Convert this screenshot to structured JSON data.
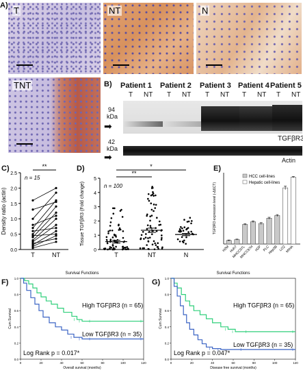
{
  "panels": {
    "A": "A)",
    "B": "B)",
    "C": "C)",
    "D": "D)",
    "E": "E)",
    "F": "F)",
    "G": "G)"
  },
  "histology": {
    "tiles": [
      "T",
      "NT",
      "N",
      "TNT"
    ]
  },
  "western_blot": {
    "patients": [
      "Patient 1",
      "Patient 2",
      "Patient 3",
      "Patient 4",
      "Patient 5"
    ],
    "lanes": [
      "T",
      "NT"
    ],
    "top_kda": "94",
    "bottom_kda": "42",
    "kda_unit": "kDa",
    "top_label": "TGFβR3",
    "bottom_label": "Actin"
  },
  "chart_data": [
    {
      "id": "C",
      "type": "scatter",
      "ylabel": "Density ratio (actin)",
      "categories": [
        "T",
        "NT"
      ],
      "yticks": [
        0.0,
        0.5,
        1.0,
        1.5,
        2.0,
        2.5
      ],
      "ylim": [
        0,
        2.5
      ],
      "n_label": "n = 15",
      "significance": "**",
      "pairs": [
        [
          0.05,
          0.25
        ],
        [
          0.1,
          0.45
        ],
        [
          0.15,
          0.6
        ],
        [
          0.2,
          0.35
        ],
        [
          0.25,
          0.8
        ],
        [
          0.3,
          1.0
        ],
        [
          0.4,
          1.2
        ],
        [
          0.45,
          0.5
        ],
        [
          0.5,
          1.4
        ],
        [
          0.6,
          0.7
        ],
        [
          0.7,
          1.6
        ],
        [
          0.8,
          1.1
        ],
        [
          1.0,
          1.85
        ],
        [
          1.3,
          1.55
        ],
        [
          1.6,
          2.0
        ]
      ]
    },
    {
      "id": "D",
      "type": "scatter",
      "ylabel": "Tissue TGFβR3 (Fold change)",
      "categories": [
        "T",
        "NT",
        "N"
      ],
      "yticks": [
        0,
        1,
        2,
        3,
        4,
        5
      ],
      "ylim": [
        0,
        5
      ],
      "n_label": "n = 100",
      "significance": [
        "**",
        "*"
      ],
      "means": [
        0.55,
        1.35,
        1.05
      ],
      "sem": [
        0.1,
        0.15,
        0.08
      ]
    },
    {
      "id": "E",
      "type": "bar",
      "ylabel": "TGFβR3 expression level (-ΔΔCT)",
      "categories": [
        "H2M",
        "Huh7",
        "MHCC97L",
        "MHCC97H",
        "H2P",
        "PLC",
        "Hep3B",
        "LO2",
        "MIHA"
      ],
      "values": [
        0.4,
        0.5,
        2.2,
        2.5,
        2.3,
        2.9,
        3.2,
        6.3,
        7.5
      ],
      "errors": [
        0.05,
        0.05,
        0.08,
        0.1,
        0.1,
        0.1,
        0.1,
        0.2,
        0.08
      ],
      "groups": [
        "HCC",
        "HCC",
        "HCC",
        "HCC",
        "HCC",
        "HCC",
        "HCC",
        "Hepatic",
        "Hepatic"
      ],
      "ylim": [
        0,
        8
      ],
      "legend": [
        "HCC cell-lines",
        "Hepatic cell-lines"
      ]
    },
    {
      "id": "F",
      "type": "line",
      "title": "Survival Functions",
      "xlabel": "Overall survival (months)",
      "ylabel": "Cum Survival",
      "xlim": [
        0,
        120
      ],
      "ylim": [
        0,
        1
      ],
      "xticks": [
        0,
        20,
        40,
        60,
        80,
        100,
        120
      ],
      "yticks": [
        0.0,
        0.2,
        0.4,
        0.6,
        0.8,
        1.0
      ],
      "series": [
        {
          "name": "High TGFβR3 (n = 65)",
          "color": "#2ecf7a",
          "x": [
            0,
            4,
            8,
            12,
            16,
            20,
            25,
            30,
            36,
            42,
            50,
            55,
            60,
            70,
            120
          ],
          "y": [
            1.0,
            0.97,
            0.93,
            0.88,
            0.82,
            0.77,
            0.72,
            0.68,
            0.63,
            0.58,
            0.53,
            0.49,
            0.47,
            0.47,
            0.47
          ]
        },
        {
          "name": "Low TGFβR3 (n = 35)",
          "color": "#3a63c4",
          "x": [
            0,
            3,
            6,
            10,
            14,
            18,
            22,
            28,
            34,
            40,
            46,
            52,
            60,
            70,
            120
          ],
          "y": [
            1.0,
            0.94,
            0.85,
            0.76,
            0.68,
            0.6,
            0.52,
            0.45,
            0.4,
            0.36,
            0.31,
            0.27,
            0.25,
            0.25,
            0.25
          ]
        }
      ],
      "annotation": "Log Rank p = 0.017*"
    },
    {
      "id": "G",
      "type": "line",
      "title": "Survival Functions",
      "xlabel": "Disease free survival (months)",
      "ylabel": "Cum Survival",
      "xlim": [
        0,
        120
      ],
      "ylim": [
        0,
        1
      ],
      "xticks": [
        0,
        20,
        40,
        60,
        80,
        100,
        120
      ],
      "yticks": [
        0.0,
        0.2,
        0.4,
        0.6,
        0.8,
        1.0
      ],
      "series": [
        {
          "name": "High TGFβR3 (n = 65)",
          "color": "#2ecf7a",
          "x": [
            0,
            3,
            6,
            10,
            14,
            18,
            22,
            28,
            34,
            40,
            48,
            55,
            62,
            75,
            120
          ],
          "y": [
            1.0,
            0.94,
            0.88,
            0.8,
            0.72,
            0.66,
            0.6,
            0.55,
            0.5,
            0.45,
            0.4,
            0.37,
            0.34,
            0.34,
            0.34
          ]
        },
        {
          "name": "Low TGFβR3 (n = 35)",
          "color": "#3a63c4",
          "x": [
            0,
            3,
            6,
            9,
            12,
            15,
            18,
            22,
            26,
            30,
            34,
            40,
            48,
            70,
            120
          ],
          "y": [
            1.0,
            0.9,
            0.78,
            0.66,
            0.55,
            0.45,
            0.37,
            0.3,
            0.24,
            0.19,
            0.15,
            0.13,
            0.12,
            0.12,
            0.12
          ]
        }
      ],
      "annotation": "Log Rank p = 0.047*"
    }
  ]
}
